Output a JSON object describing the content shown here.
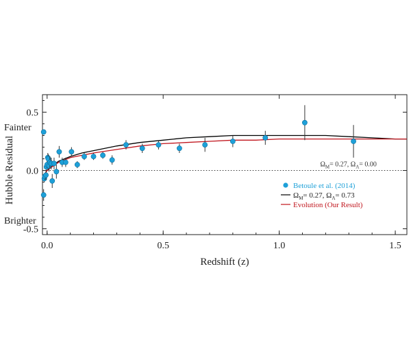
{
  "chart_data": {
    "type": "scatter",
    "xlabel": "Redshift (z)",
    "ylabel": "Hubble Residual",
    "xlim": [
      -0.02,
      1.55
    ],
    "ylim": [
      -0.55,
      0.65
    ],
    "x_ticks": [
      {
        "value": 0.0,
        "label": "0.0"
      },
      {
        "value": 0.5,
        "label": "0.5"
      },
      {
        "value": 1.0,
        "label": "1.0"
      },
      {
        "value": 1.5,
        "label": "1.5"
      }
    ],
    "y_ticks": [
      {
        "value": 0.5,
        "label": "0.5"
      },
      {
        "value": 0.0,
        "label": "0.0"
      },
      {
        "value": -0.5,
        "label": "-0.5"
      }
    ],
    "side_labels": {
      "top": "Fainter",
      "bottom": "Brighter"
    },
    "reference_line": {
      "y": 0.0,
      "label_main": "Ω",
      "label_m_sub": "M",
      "label_m_val": "= 0.27,  Ω",
      "label_l_sub": "Λ",
      "label_l_val": "= 0.00"
    },
    "legend": {
      "position": "lower-right",
      "entries": [
        {
          "type": "marker",
          "label": "Betoule et al. (2014)",
          "color": "#1ea0d8"
        },
        {
          "type": "line",
          "label_parts": [
            "Ω",
            "M",
            "= 0.27, Ω",
            "Λ",
            "= 0.73"
          ],
          "color": "#000000"
        },
        {
          "type": "line",
          "label": "Evolution (Our Result)",
          "color": "#c0141c"
        }
      ]
    },
    "series": [
      {
        "name": "Betoule et al. (2014)",
        "kind": "points",
        "color": "#1ea0d8",
        "points": [
          {
            "x": -0.015,
            "y": 0.33,
            "err": 0.0
          },
          {
            "x": -0.015,
            "y": -0.21,
            "err": 0.05
          },
          {
            "x": -0.012,
            "y": -0.07,
            "err": 0.03
          },
          {
            "x": -0.01,
            "y": -0.05,
            "err": 0.03
          },
          {
            "x": -0.005,
            "y": -0.04,
            "err": 0.04
          },
          {
            "x": -0.003,
            "y": 0.03,
            "err": 0.03
          },
          {
            "x": 0.0,
            "y": 0.05,
            "err": 0.03
          },
          {
            "x": 0.003,
            "y": 0.11,
            "err": 0.04
          },
          {
            "x": 0.005,
            "y": 0.1,
            "err": 0.04
          },
          {
            "x": 0.008,
            "y": 0.04,
            "err": 0.05
          },
          {
            "x": 0.012,
            "y": 0.07,
            "err": 0.05
          },
          {
            "x": 0.018,
            "y": 0.06,
            "err": 0.05
          },
          {
            "x": 0.022,
            "y": -0.09,
            "err": 0.06
          },
          {
            "x": 0.03,
            "y": 0.06,
            "err": 0.05
          },
          {
            "x": 0.04,
            "y": -0.01,
            "err": 0.06
          },
          {
            "x": 0.052,
            "y": 0.16,
            "err": 0.05
          },
          {
            "x": 0.065,
            "y": 0.07,
            "err": 0.04
          },
          {
            "x": 0.08,
            "y": 0.07,
            "err": 0.04
          },
          {
            "x": 0.105,
            "y": 0.16,
            "err": 0.04
          },
          {
            "x": 0.13,
            "y": 0.05,
            "err": 0.03
          },
          {
            "x": 0.16,
            "y": 0.12,
            "err": 0.03
          },
          {
            "x": 0.2,
            "y": 0.12,
            "err": 0.03
          },
          {
            "x": 0.24,
            "y": 0.13,
            "err": 0.03
          },
          {
            "x": 0.28,
            "y": 0.09,
            "err": 0.04
          },
          {
            "x": 0.34,
            "y": 0.22,
            "err": 0.04
          },
          {
            "x": 0.41,
            "y": 0.19,
            "err": 0.04
          },
          {
            "x": 0.48,
            "y": 0.22,
            "err": 0.04
          },
          {
            "x": 0.57,
            "y": 0.19,
            "err": 0.04
          },
          {
            "x": 0.68,
            "y": 0.22,
            "err": 0.06
          },
          {
            "x": 0.8,
            "y": 0.25,
            "err": 0.05
          },
          {
            "x": 0.94,
            "y": 0.28,
            "err": 0.06
          },
          {
            "x": 1.11,
            "y": 0.41,
            "err": 0.15
          },
          {
            "x": 1.32,
            "y": 0.25,
            "err": 0.14
          }
        ]
      },
      {
        "name": "ΩM = 0.27, ΩΛ = 0.73",
        "kind": "curve",
        "color": "#000000",
        "x": [
          -0.02,
          0.0,
          0.02,
          0.05,
          0.1,
          0.15,
          0.2,
          0.3,
          0.4,
          0.5,
          0.6,
          0.7,
          0.8,
          0.9,
          1.0,
          1.1,
          1.2,
          1.3,
          1.4,
          1.5,
          1.55
        ],
        "y": [
          -0.06,
          0.0,
          0.04,
          0.08,
          0.12,
          0.15,
          0.17,
          0.21,
          0.24,
          0.26,
          0.28,
          0.29,
          0.3,
          0.3,
          0.3,
          0.3,
          0.3,
          0.29,
          0.28,
          0.27,
          0.27
        ]
      },
      {
        "name": "Evolution (Our Result)",
        "kind": "curve",
        "color": "#c0141c",
        "x": [
          -0.02,
          0.0,
          0.02,
          0.05,
          0.1,
          0.15,
          0.2,
          0.3,
          0.4,
          0.5,
          0.6,
          0.7,
          0.8,
          0.9,
          1.0,
          1.1,
          1.2,
          1.3,
          1.4,
          1.5,
          1.55
        ],
        "y": [
          -0.06,
          0.0,
          0.03,
          0.07,
          0.11,
          0.13,
          0.15,
          0.18,
          0.21,
          0.23,
          0.24,
          0.25,
          0.26,
          0.26,
          0.27,
          0.27,
          0.27,
          0.27,
          0.27,
          0.27,
          0.27
        ]
      }
    ]
  }
}
